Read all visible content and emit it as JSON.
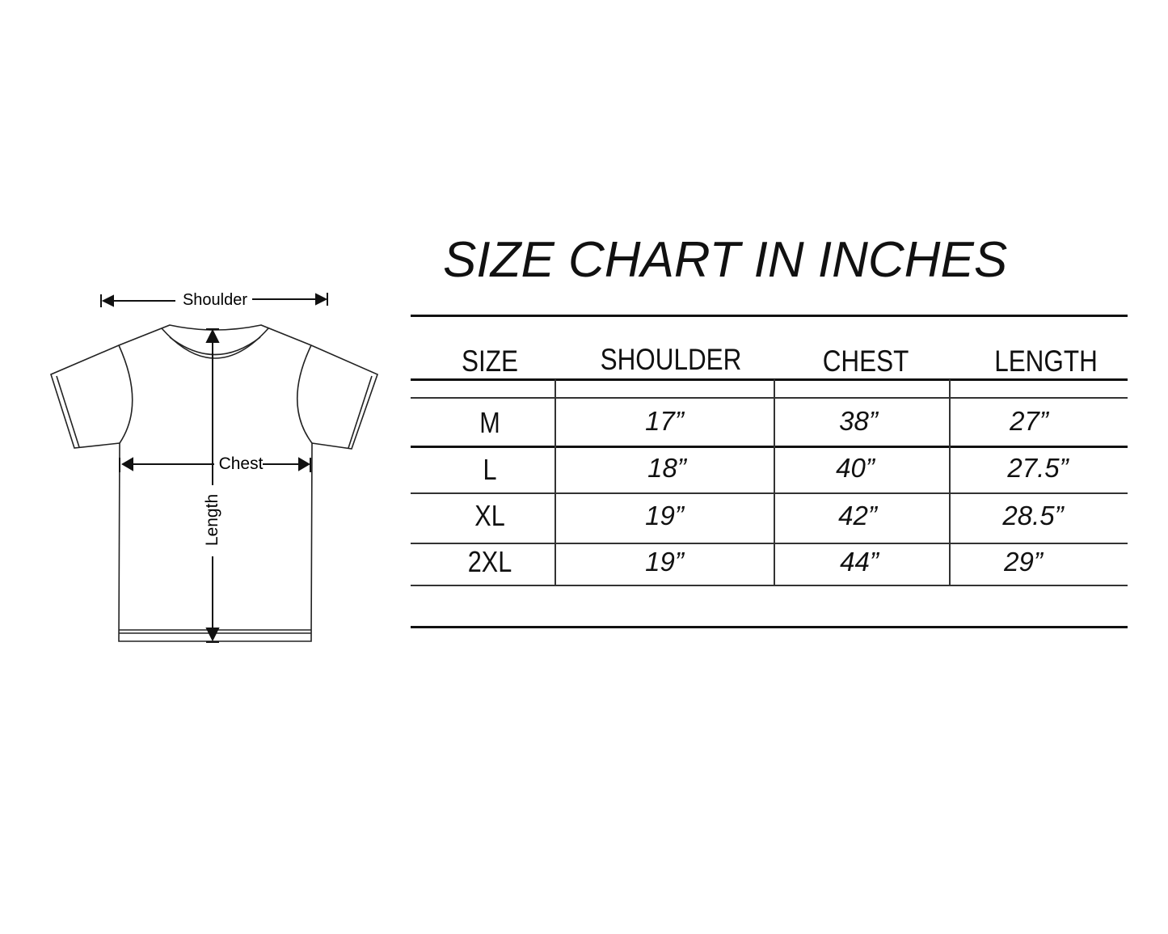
{
  "title": "SIZE CHART IN INCHES",
  "diagram": {
    "labels": {
      "shoulder": "Shoulder",
      "chest": "Chest",
      "length": "Length"
    }
  },
  "table": {
    "headers": [
      "SIZE",
      "SHOULDER",
      "CHEST",
      "LENGTH"
    ],
    "rows": [
      [
        "M",
        "17”",
        "38”",
        "27”"
      ],
      [
        "L",
        "18”",
        "40”",
        "27.5”"
      ],
      [
        "XL",
        "19”",
        "42”",
        "28.5”"
      ],
      [
        "2XL",
        "19”",
        "44”",
        "29”"
      ]
    ]
  }
}
